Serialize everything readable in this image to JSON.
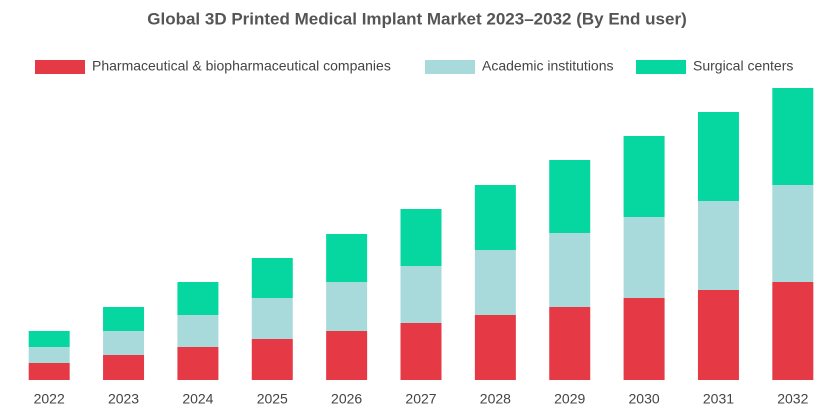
{
  "chart_data": {
    "type": "stacked_bar",
    "title": "Global 3D Printed Medical Implant Market 2023–2032 (By End user)",
    "categories": [
      "2022",
      "2023",
      "2024",
      "2025",
      "2026",
      "2027",
      "2028",
      "2029",
      "2030",
      "2031",
      "2032"
    ],
    "series": [
      {
        "name": "Pharmaceutical & biopharmaceutical companies",
        "color": "#e63946",
        "values": [
          17,
          25,
          33,
          41,
          49,
          57,
          65,
          73,
          82,
          90,
          98
        ]
      },
      {
        "name": "Academic institutions",
        "color": "#a8dadc",
        "values": [
          16,
          24,
          32,
          41,
          49,
          57,
          65,
          74,
          81,
          89,
          97
        ]
      },
      {
        "name": "Surgical centers",
        "color": "#06d6a0",
        "values": [
          16,
          24,
          33,
          40,
          48,
          57,
          65,
          73,
          81,
          89,
          97
        ]
      }
    ],
    "ylim": [
      0,
      300
    ],
    "legend": "top"
  }
}
